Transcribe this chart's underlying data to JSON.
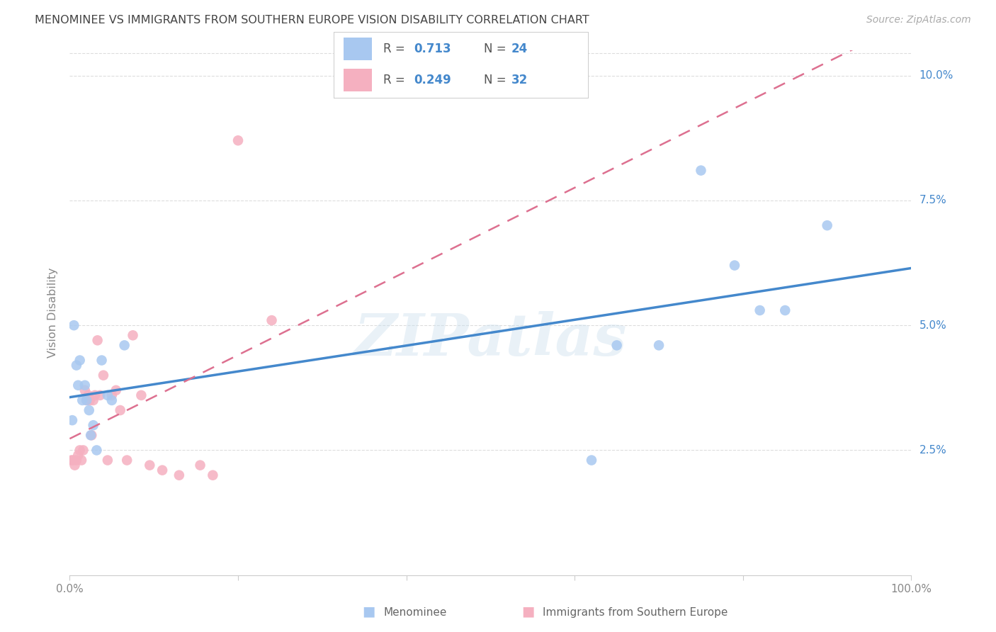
{
  "title": "MENOMINEE VS IMMIGRANTS FROM SOUTHERN EUROPE VISION DISABILITY CORRELATION CHART",
  "source": "Source: ZipAtlas.com",
  "ylabel": "Vision Disability",
  "xlim": [
    0,
    100
  ],
  "ylim_min": 0,
  "ylim_max": 10.5,
  "ytick_values": [
    2.5,
    5.0,
    7.5,
    10.0
  ],
  "legend_label1_R": "0.713",
  "legend_label1_N": "24",
  "legend_label2_R": "0.249",
  "legend_label2_N": "32",
  "blue_scatter_color": "#a8c8f0",
  "pink_scatter_color": "#f5b0c0",
  "blue_line_color": "#4488cc",
  "pink_line_color": "#dd7090",
  "text_blue_color": "#4488cc",
  "watermark": "ZIPatlas",
  "watermark_color": "#c8dded",
  "background_color": "#ffffff",
  "grid_color": "#dddddd",
  "title_color": "#444444",
  "axis_color": "#888888",
  "bottom_label_color": "#666666",
  "menominee_x": [
    0.3,
    0.5,
    0.8,
    1.0,
    1.2,
    1.5,
    1.8,
    2.0,
    2.3,
    2.5,
    2.8,
    3.2,
    3.8,
    4.5,
    5.0,
    6.5,
    62.0,
    65.0,
    70.0,
    75.0,
    79.0,
    82.0,
    85.0,
    90.0
  ],
  "menominee_y": [
    3.1,
    5.0,
    4.2,
    3.8,
    4.3,
    3.5,
    3.8,
    3.5,
    3.3,
    2.8,
    3.0,
    2.5,
    4.3,
    3.6,
    3.5,
    4.6,
    2.3,
    4.6,
    4.6,
    8.1,
    6.2,
    5.3,
    5.3,
    7.0
  ],
  "immigrants_x": [
    0.2,
    0.4,
    0.6,
    0.8,
    1.0,
    1.2,
    1.4,
    1.6,
    1.8,
    2.0,
    2.2,
    2.4,
    2.6,
    2.8,
    3.0,
    3.3,
    3.6,
    4.0,
    4.5,
    5.0,
    5.5,
    6.0,
    6.8,
    7.5,
    8.5,
    9.5,
    11.0,
    13.0,
    15.5,
    17.0,
    20.0,
    24.0
  ],
  "immigrants_y": [
    2.3,
    2.3,
    2.2,
    2.3,
    2.4,
    2.5,
    2.3,
    2.5,
    3.7,
    3.5,
    3.6,
    3.5,
    2.8,
    3.5,
    3.6,
    4.7,
    3.6,
    4.0,
    2.3,
    3.6,
    3.7,
    3.3,
    2.3,
    4.8,
    3.6,
    2.2,
    2.1,
    2.0,
    2.2,
    2.0,
    8.7,
    5.1
  ]
}
